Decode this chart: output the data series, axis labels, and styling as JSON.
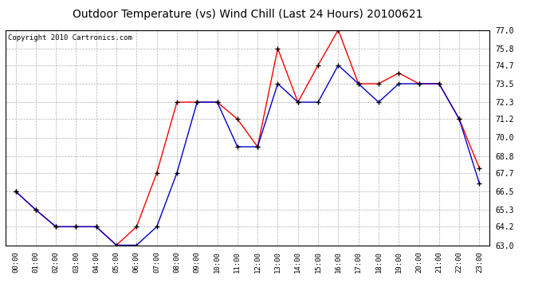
{
  "title": "Outdoor Temperature (vs) Wind Chill (Last 24 Hours) 20100621",
  "copyright": "Copyright 2010 Cartronics.com",
  "x_labels": [
    "00:00",
    "01:00",
    "02:00",
    "03:00",
    "04:00",
    "05:00",
    "06:00",
    "07:00",
    "08:00",
    "09:00",
    "10:00",
    "11:00",
    "12:00",
    "13:00",
    "14:00",
    "15:00",
    "16:00",
    "17:00",
    "18:00",
    "19:00",
    "20:00",
    "21:00",
    "22:00",
    "23:00"
  ],
  "y_ticks": [
    63.0,
    64.2,
    65.3,
    66.5,
    67.7,
    68.8,
    70.0,
    71.2,
    72.3,
    73.5,
    74.7,
    75.8,
    77.0
  ],
  "y_min": 63.0,
  "y_max": 77.0,
  "temp_red": [
    66.5,
    65.3,
    64.2,
    64.2,
    64.2,
    63.0,
    64.2,
    67.7,
    72.3,
    72.3,
    72.3,
    71.2,
    69.4,
    75.8,
    72.3,
    74.7,
    77.0,
    73.5,
    73.5,
    74.2,
    73.5,
    73.5,
    71.2,
    68.0
  ],
  "temp_blue": [
    66.5,
    65.3,
    64.2,
    64.2,
    64.2,
    63.0,
    63.0,
    64.2,
    67.7,
    72.3,
    72.3,
    69.4,
    69.4,
    73.5,
    72.3,
    72.3,
    74.7,
    73.5,
    72.3,
    73.5,
    73.5,
    73.5,
    71.2,
    67.0
  ],
  "red_color": "#ff0000",
  "blue_color": "#0000cc",
  "bg_color": "#ffffff",
  "plot_bg_color": "#ffffff",
  "grid_color": "#b0b0b0",
  "title_fontsize": 10,
  "copyright_fontsize": 6.5
}
